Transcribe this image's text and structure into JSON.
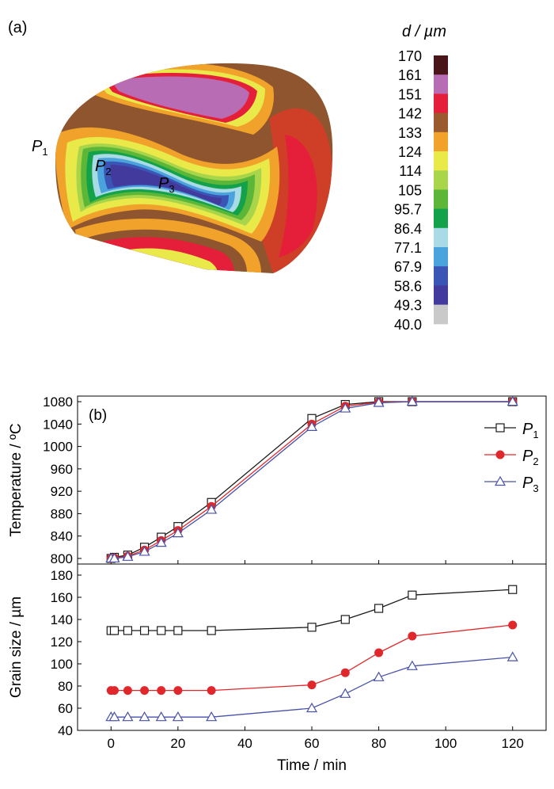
{
  "panel_a": {
    "label": "(a)",
    "colorbar": {
      "title": "d / µm",
      "ticks": [
        "170",
        "161",
        "151",
        "142",
        "133",
        "124",
        "114",
        "105",
        "95.7",
        "86.4",
        "77.1",
        "67.9",
        "58.6",
        "49.3",
        "40.0"
      ],
      "colors": [
        "#4a1518",
        "#b86cb3",
        "#e51f3a",
        "#9a5a2e",
        "#f0a22b",
        "#e9ea4a",
        "#a9d54b",
        "#5cb739",
        "#13a24a",
        "#a9dbe6",
        "#4aa3dc",
        "#3b55b6",
        "#423a9c",
        "#c9c9c9"
      ]
    },
    "points": [
      {
        "letter": "P",
        "sub": "1"
      },
      {
        "letter": "P",
        "sub": "2"
      },
      {
        "letter": "P",
        "sub": "3"
      }
    ]
  },
  "chart_data": [
    {
      "type": "line",
      "panel_label": "(b)",
      "ylabel": "Temperature / ºC",
      "ylim": [
        790,
        1090
      ],
      "yticks": [
        800,
        840,
        880,
        920,
        960,
        1000,
        1040,
        1080
      ],
      "xlim": [
        -10,
        130
      ],
      "legend_position": "right",
      "series": [
        {
          "name": "P1",
          "name_letter": "P",
          "name_sub": "1",
          "marker": "open-square",
          "color": "#1a1a1a",
          "x": [
            0,
            1,
            5,
            10,
            15,
            20,
            30,
            60,
            70,
            80,
            90,
            120
          ],
          "y": [
            800,
            802,
            806,
            820,
            838,
            857,
            900,
            1050,
            1075,
            1080,
            1080,
            1080
          ]
        },
        {
          "name": "P2",
          "name_letter": "P",
          "name_sub": "2",
          "marker": "filled-circle",
          "color": "#e0282c",
          "x": [
            0,
            1,
            5,
            10,
            15,
            20,
            30,
            60,
            70,
            80,
            90,
            120
          ],
          "y": [
            800,
            801,
            804,
            815,
            832,
            850,
            893,
            1040,
            1072,
            1079,
            1080,
            1080
          ]
        },
        {
          "name": "P3",
          "name_letter": "P",
          "name_sub": "3",
          "marker": "open-triangle",
          "color": "#4a52a8",
          "x": [
            0,
            1,
            5,
            10,
            15,
            20,
            30,
            60,
            70,
            80,
            90,
            120
          ],
          "y": [
            800,
            800,
            803,
            812,
            828,
            845,
            887,
            1035,
            1068,
            1078,
            1080,
            1080
          ]
        }
      ]
    },
    {
      "type": "line",
      "ylabel": "Grain size / µm",
      "xlabel": "Time / min",
      "ylim": [
        40,
        190
      ],
      "yticks": [
        40,
        60,
        80,
        100,
        120,
        140,
        160,
        180
      ],
      "xlim": [
        -10,
        130
      ],
      "xticks": [
        0,
        20,
        40,
        60,
        80,
        100,
        120
      ],
      "series": [
        {
          "name": "P1",
          "marker": "open-square",
          "color": "#1a1a1a",
          "x": [
            0,
            1,
            5,
            10,
            15,
            20,
            30,
            60,
            70,
            80,
            90,
            120
          ],
          "y": [
            130,
            130,
            130,
            130,
            130,
            130,
            130,
            133,
            140,
            150,
            162,
            167
          ]
        },
        {
          "name": "P2",
          "marker": "filled-circle",
          "color": "#e0282c",
          "x": [
            0,
            1,
            5,
            10,
            15,
            20,
            30,
            60,
            70,
            80,
            90,
            120
          ],
          "y": [
            76,
            76,
            76,
            76,
            76,
            76,
            76,
            81,
            92,
            110,
            125,
            135
          ]
        },
        {
          "name": "P3",
          "marker": "open-triangle",
          "color": "#4a52a8",
          "x": [
            0,
            1,
            5,
            10,
            15,
            20,
            30,
            60,
            70,
            80,
            90,
            120
          ],
          "y": [
            52,
            52,
            52,
            52,
            52,
            52,
            52,
            60,
            73,
            88,
            98,
            106
          ]
        }
      ]
    }
  ]
}
